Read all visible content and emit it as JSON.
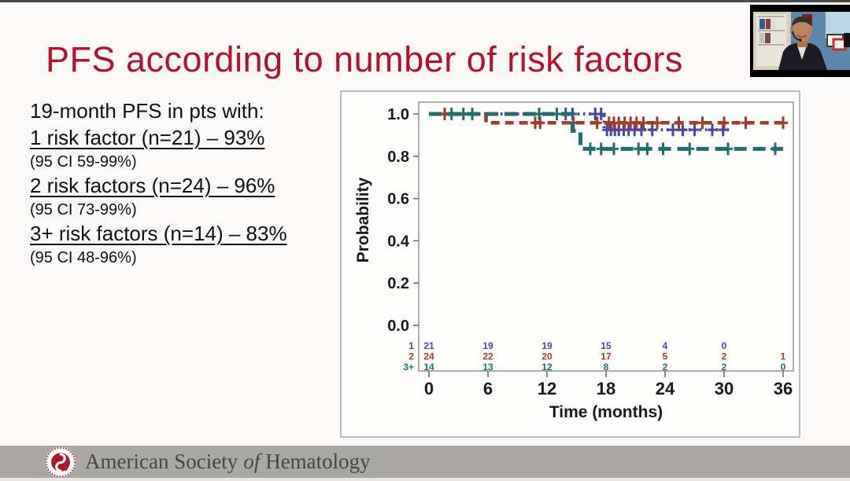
{
  "slide": {
    "title": "PFS according to number of risk factors",
    "info": {
      "heading": "19-month PFS in pts with:",
      "items": [
        {
          "label": "1 risk factor (n=21) – 93%",
          "ci": "(95 CI 59-99%)"
        },
        {
          "label": "2 risk factors (n=24) – 96%",
          "ci": "(95 CI 73-99%)"
        },
        {
          "label": "3+ risk factors (n=14) – 83%",
          "ci": "(95 CI 48-96%)"
        }
      ]
    }
  },
  "chart_data": {
    "type": "line",
    "subtype": "kaplan-meier-step",
    "title": "",
    "xlabel": "Time (months)",
    "ylabel": "Probability",
    "xlim": [
      0,
      36
    ],
    "ylim": [
      0.0,
      1.0
    ],
    "x_ticks": [
      "0",
      "6",
      "12",
      "18",
      "24",
      "30",
      "36"
    ],
    "y_ticks": [
      "1.0",
      "0.8",
      "0.6",
      "0.4",
      "0.2",
      "0.0"
    ],
    "grid": false,
    "legend": "none",
    "series": [
      {
        "name": "1-risk-factor",
        "label": "1",
        "color": "#4747a5",
        "dash": "2.5 4.5",
        "width": 4,
        "steps": [
          [
            0,
            1.0
          ],
          [
            17.8,
            1.0
          ],
          [
            17.8,
            0.925
          ],
          [
            30.5,
            0.925
          ]
        ],
        "censors": [
          [
            13.9,
            1.0
          ],
          [
            14.6,
            1.0
          ],
          [
            16.9,
            1.0
          ],
          [
            17.5,
            1.0
          ],
          [
            18.1,
            0.925
          ],
          [
            18.5,
            0.925
          ],
          [
            18.9,
            0.925
          ],
          [
            19.3,
            0.925
          ],
          [
            19.8,
            0.925
          ],
          [
            20.3,
            0.925
          ],
          [
            20.9,
            0.925
          ],
          [
            21.6,
            0.925
          ],
          [
            22.7,
            0.925
          ],
          [
            24.8,
            0.925
          ],
          [
            25.8,
            0.925
          ],
          [
            27.0,
            0.925
          ],
          [
            28.8,
            0.925
          ],
          [
            29.9,
            0.925
          ]
        ]
      },
      {
        "name": "2-risk-factors",
        "label": "2",
        "color": "#a43a28",
        "dash": "11 7",
        "width": 4.5,
        "steps": [
          [
            0,
            1.0
          ],
          [
            5.8,
            1.0
          ],
          [
            5.8,
            0.958
          ],
          [
            36,
            0.958
          ]
        ],
        "censors": [
          [
            1.6,
            1.0
          ],
          [
            10.8,
            0.958
          ],
          [
            11.3,
            0.958
          ],
          [
            14.7,
            0.958
          ],
          [
            17.1,
            0.958
          ],
          [
            18.3,
            0.958
          ],
          [
            18.8,
            0.958
          ],
          [
            19.3,
            0.958
          ],
          [
            19.9,
            0.958
          ],
          [
            20.5,
            0.958
          ],
          [
            21.1,
            0.958
          ],
          [
            21.8,
            0.958
          ],
          [
            23.2,
            0.958
          ],
          [
            25.4,
            0.958
          ],
          [
            27.8,
            0.958
          ],
          [
            30.0,
            0.958
          ],
          [
            32.2,
            0.958
          ],
          [
            36,
            0.958
          ]
        ]
      },
      {
        "name": "3plus-risk-factors",
        "label": "3+",
        "color": "#1f6f6d",
        "dash": "16 8",
        "width": 5,
        "steps": [
          [
            0,
            1.0
          ],
          [
            14.6,
            1.0
          ],
          [
            14.6,
            0.92
          ],
          [
            15.4,
            0.92
          ],
          [
            15.4,
            0.835
          ],
          [
            36,
            0.835
          ]
        ],
        "censors": [
          [
            2.3,
            1.0
          ],
          [
            3.5,
            1.0
          ],
          [
            4.4,
            1.0
          ],
          [
            11.2,
            1.0
          ],
          [
            13.0,
            1.0
          ],
          [
            16.4,
            0.835
          ],
          [
            17.5,
            0.835
          ],
          [
            18.8,
            0.835
          ],
          [
            21.3,
            0.835
          ],
          [
            22.2,
            0.835
          ],
          [
            23.8,
            0.835
          ],
          [
            26.5,
            0.835
          ],
          [
            30.4,
            0.835
          ],
          [
            35.2,
            0.835
          ]
        ]
      }
    ],
    "at_risk": {
      "rows": [
        {
          "label": "1",
          "color": "#4747a5",
          "values": [
            "21",
            "19",
            "19",
            "15",
            "4",
            "0",
            ""
          ]
        },
        {
          "label": "2",
          "color": "#a43a28",
          "values": [
            "24",
            "22",
            "20",
            "17",
            "5",
            "2",
            "1"
          ]
        },
        {
          "label": "3+",
          "color": "#1f6f6d",
          "values": [
            "14",
            "13",
            "12",
            "8",
            "2",
            "2",
            "0"
          ]
        }
      ]
    }
  },
  "footer": {
    "org_prefix": "American Society",
    "org_of": "of",
    "org_suffix": "Hematology",
    "logo_icon": "ash-logo",
    "logo_color": "#a8192e"
  }
}
